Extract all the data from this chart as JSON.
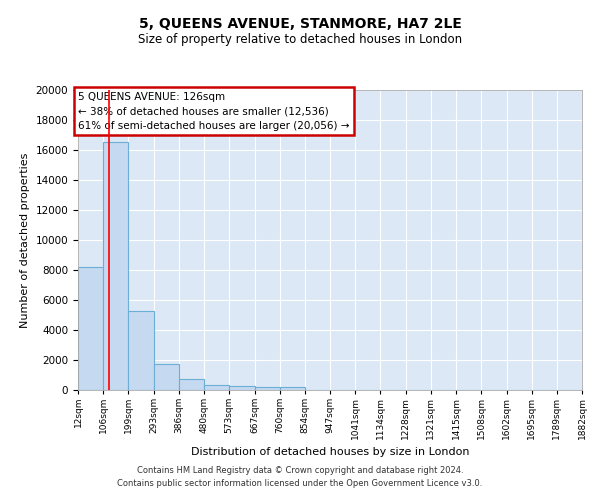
{
  "title": "5, QUEENS AVENUE, STANMORE, HA7 2LE",
  "subtitle": "Size of property relative to detached houses in London",
  "xlabel": "Distribution of detached houses by size in London",
  "ylabel": "Number of detached properties",
  "bar_color": "#c5d9f0",
  "bar_edge_color": "#6baed6",
  "background_color": "#dce8f5",
  "grid_color": "#ffffff",
  "red_line_x": 126,
  "annotation_text": "5 QUEENS AVENUE: 126sqm\n← 38% of detached houses are smaller (12,536)\n61% of semi-detached houses are larger (20,056) →",
  "annotation_box_color": "#ffffff",
  "annotation_box_edge_color": "#cc0000",
  "footer_line1": "Contains HM Land Registry data © Crown copyright and database right 2024.",
  "footer_line2": "Contains public sector information licensed under the Open Government Licence v3.0.",
  "bin_edges": [
    12,
    106,
    199,
    293,
    386,
    480,
    573,
    667,
    760,
    854,
    947,
    1041,
    1134,
    1228,
    1321,
    1415,
    1508,
    1602,
    1695,
    1789,
    1882
  ],
  "bar_heights": [
    8200,
    16500,
    5300,
    1750,
    750,
    350,
    270,
    200,
    190,
    0,
    0,
    0,
    0,
    0,
    0,
    0,
    0,
    0,
    0,
    0
  ],
  "ylim": [
    0,
    20000
  ],
  "yticks": [
    0,
    2000,
    4000,
    6000,
    8000,
    10000,
    12000,
    14000,
    16000,
    18000,
    20000
  ]
}
